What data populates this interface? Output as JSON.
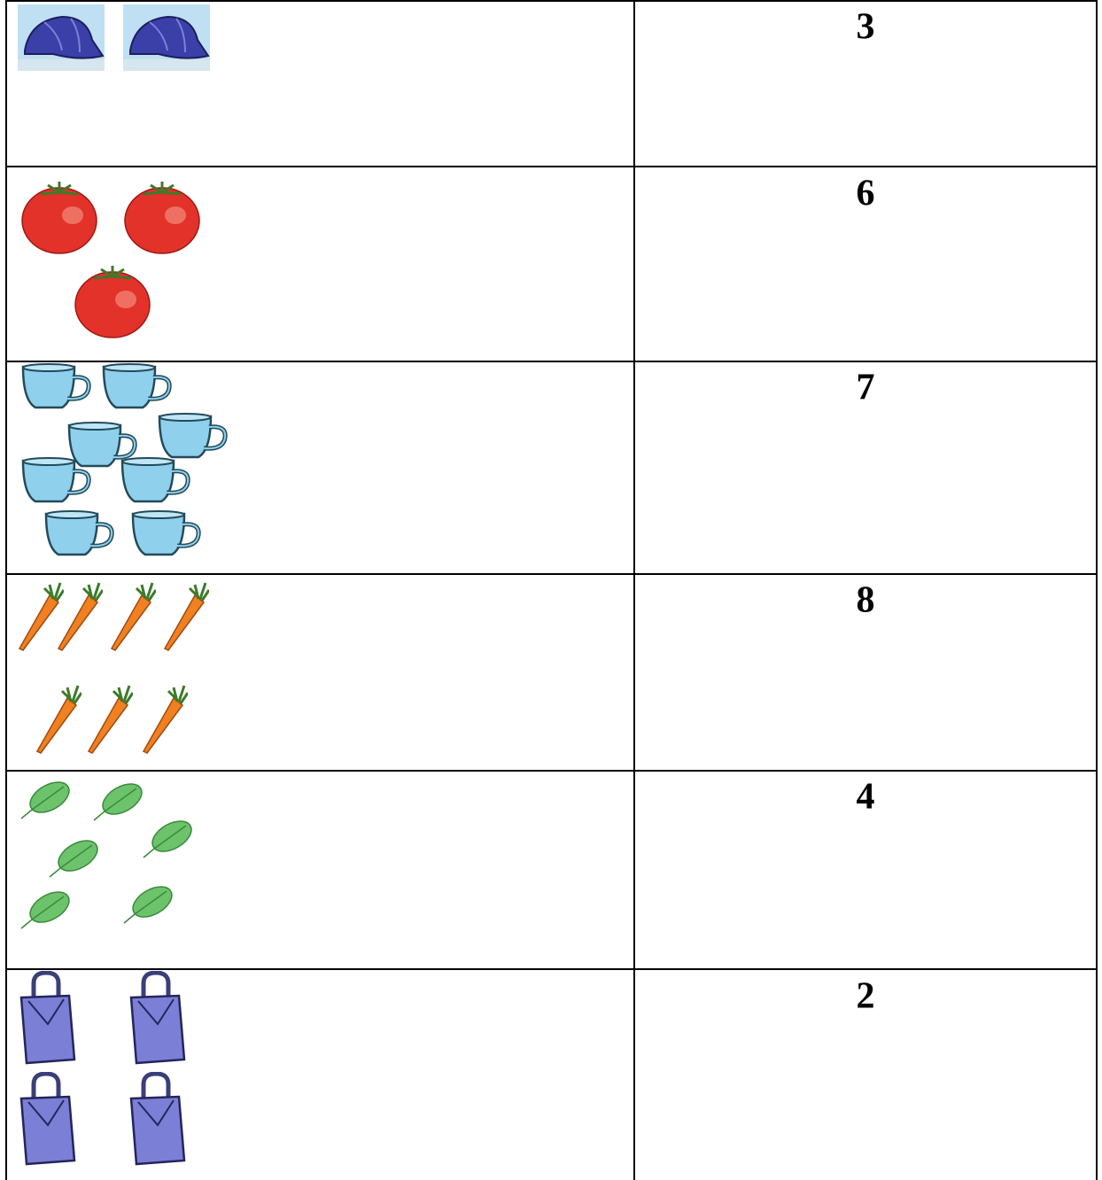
{
  "table": {
    "rows": [
      [
        3
      ],
      [
        6
      ],
      [
        7
      ],
      [
        8
      ],
      [
        4
      ],
      [
        2
      ]
    ]
  }
}
